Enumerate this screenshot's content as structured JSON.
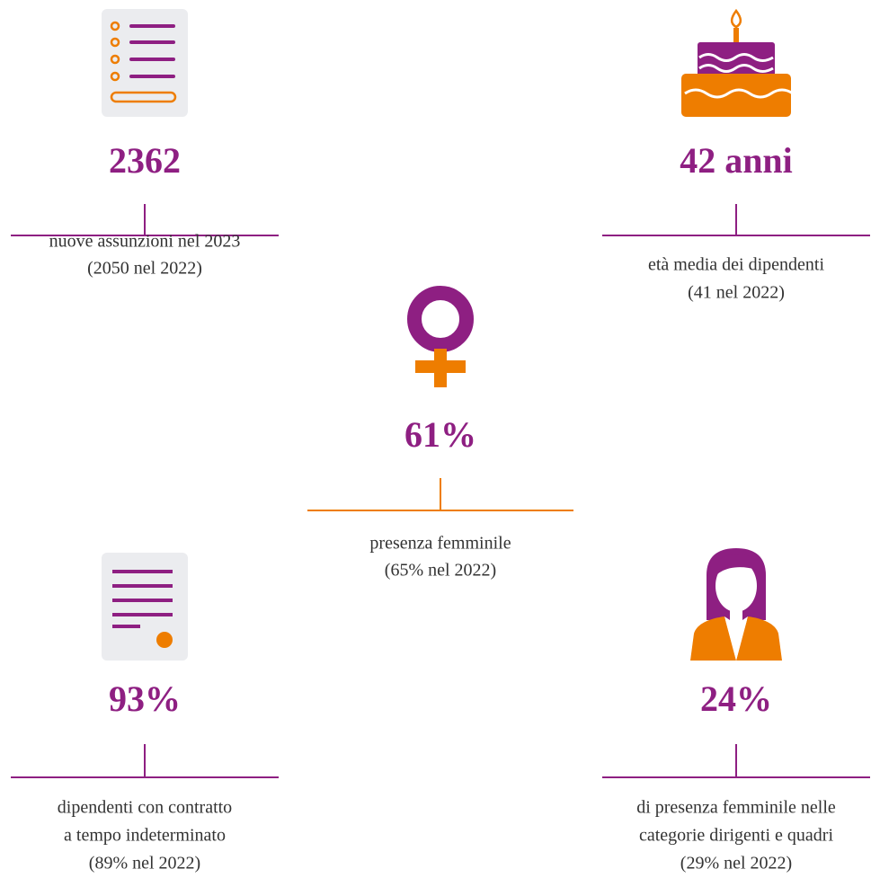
{
  "stats": [
    {
      "value": "2362",
      "lines": [
        "nuove assunzioni nel 2023",
        "(2050 nel 2022)"
      ]
    },
    {
      "value": "42 anni",
      "lines": [
        "età media dei dipendenti",
        "(41 nel 2022)"
      ]
    },
    {
      "value": "61%",
      "lines": [
        "presenza femminile",
        "(65% nel 2022)"
      ]
    },
    {
      "value": "93%",
      "lines": [
        "dipendenti con contratto",
        "a tempo indeterminato",
        "(89% nel 2022)"
      ]
    },
    {
      "value": "24%",
      "lines": [
        "di presenza femminile nelle",
        "categorie dirigenti e quadri",
        "(29% nel 2022)"
      ]
    }
  ]
}
